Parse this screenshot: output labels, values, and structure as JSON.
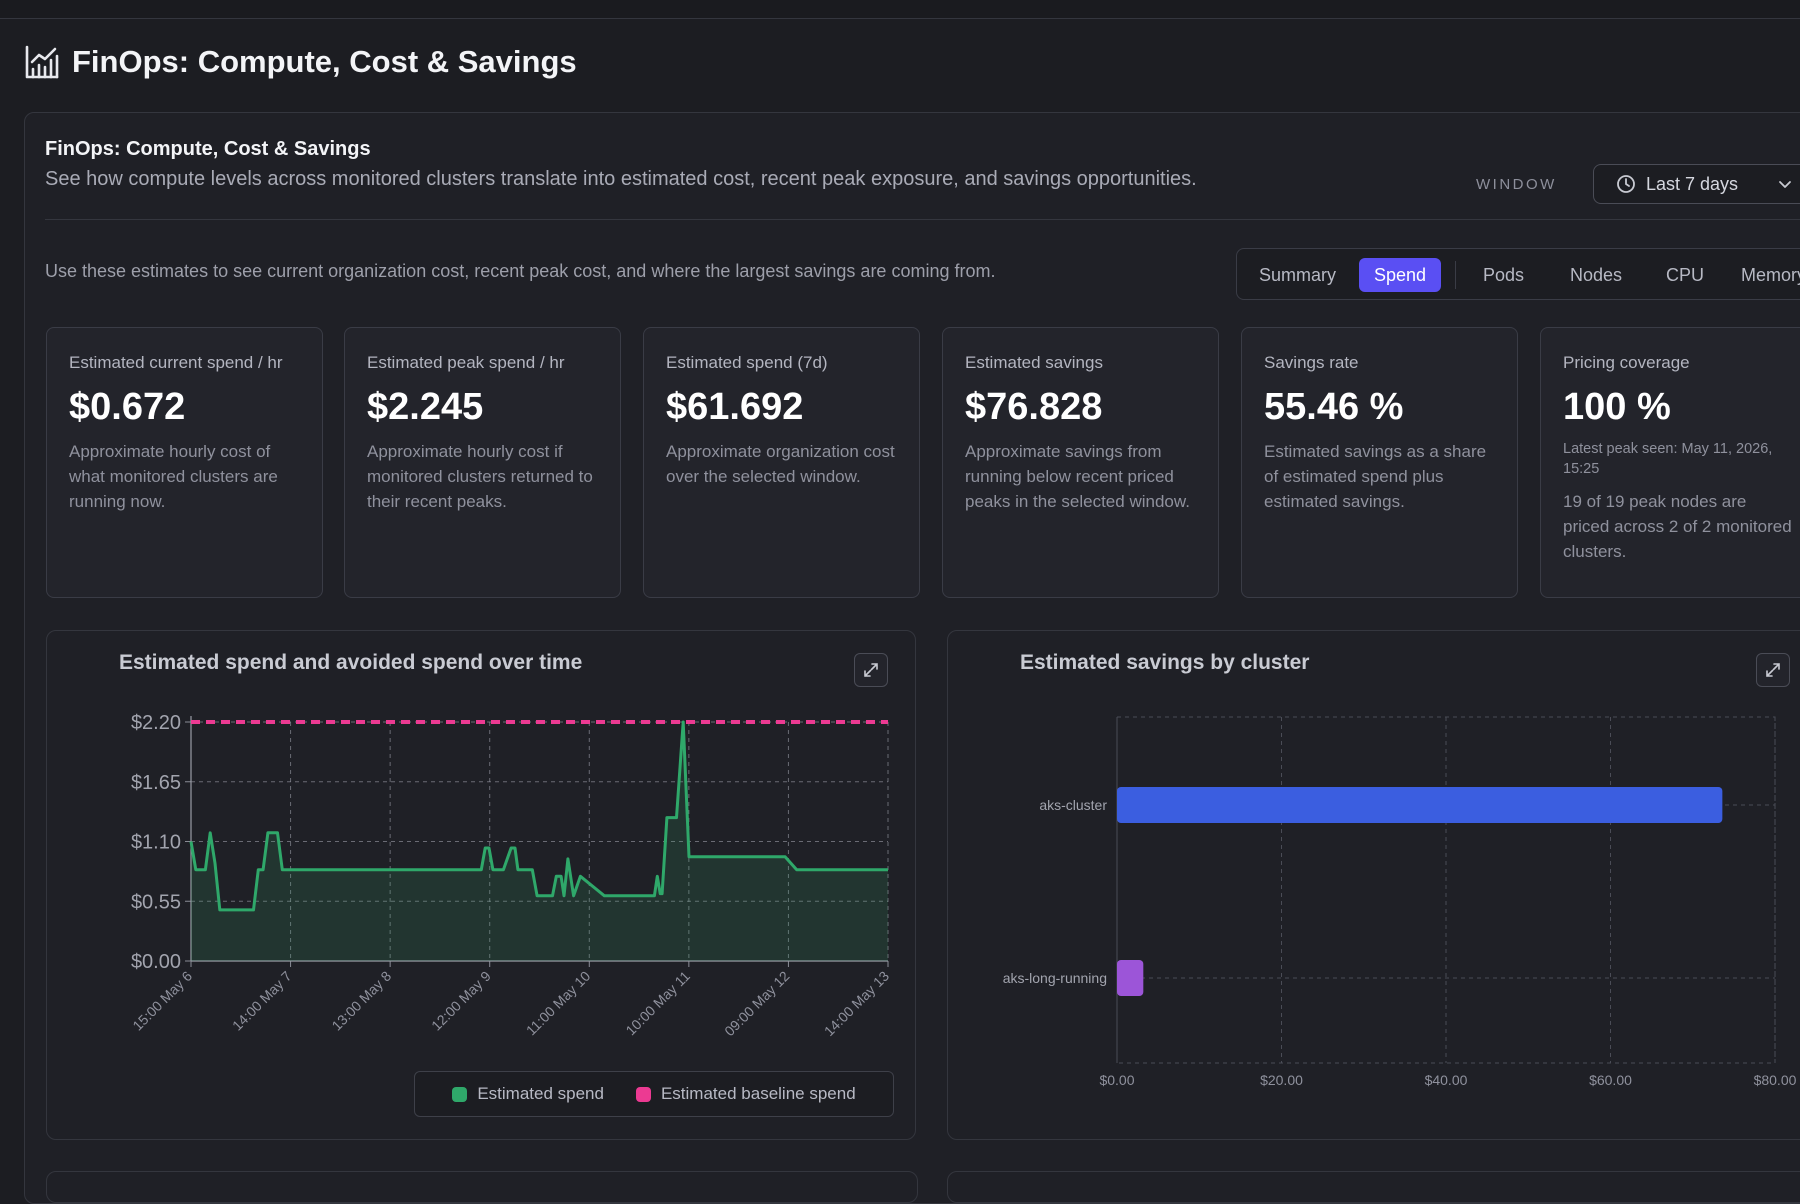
{
  "page": {
    "title": "FinOps: Compute, Cost & Savings",
    "title_icon": "bar-chart-rising-icon"
  },
  "panel": {
    "title": "FinOps: Compute, Cost & Savings",
    "subtitle": "See how compute levels across monitored clusters translate into estimated cost, recent peak exposure, and savings opportunities.",
    "window_label": "WINDOW",
    "window_value": "Last 7 days",
    "hint": "Use these estimates to see current organization cost, recent peak cost, and where the largest savings are coming from."
  },
  "tabs": [
    {
      "label": "Summary",
      "active": false
    },
    {
      "label": "Spend",
      "active": true
    },
    {
      "label": "Pods",
      "active": false
    },
    {
      "label": "Nodes",
      "active": false
    },
    {
      "label": "CPU",
      "active": false
    },
    {
      "label": "Memory",
      "active": false
    }
  ],
  "cards": [
    {
      "title": "Estimated current spend / hr",
      "value": "$0.672",
      "desc": "Approximate hourly cost of what monitored clusters are running now."
    },
    {
      "title": "Estimated peak spend / hr",
      "value": "$2.245",
      "desc": "Approximate hourly cost if monitored clusters returned to their recent peaks."
    },
    {
      "title": "Estimated spend (7d)",
      "value": "$61.692",
      "desc": "Approximate organization cost over the selected window."
    },
    {
      "title": "Estimated savings",
      "value": "$76.828",
      "desc": "Approximate savings from running below recent priced peaks in the selected window."
    },
    {
      "title": "Savings rate",
      "value": "55.46 %",
      "desc": "Estimated savings as a share of estimated spend plus estimated savings."
    },
    {
      "title": "Pricing coverage",
      "value": "100 %",
      "small": "Latest peak seen: May 11, 2026, 15:25",
      "desc": "19 of 19 peak nodes are priced across 2 of 2 monitored clusters."
    }
  ],
  "chart_data": [
    {
      "type": "area",
      "title": "Estimated spend and avoided spend over time",
      "xlabel": "",
      "ylabel": "",
      "ylim": [
        0,
        2.2
      ],
      "y_ticks": [
        "$0.00",
        "$0.55",
        "$1.10",
        "$1.65",
        "$2.20"
      ],
      "x_ticks": [
        "15:00 May 6",
        "14:00 May 7",
        "13:00 May 8",
        "12:00 May 9",
        "11:00 May 10",
        "10:00 May 11",
        "09:00 May 12",
        "14:00 May 13"
      ],
      "grid": true,
      "legend_position": "bottom",
      "series": [
        {
          "name": "Estimated spend",
          "color": "#2fa86a",
          "x": [
            0,
            0.05,
            0.15,
            0.2,
            0.25,
            0.3,
            0.35,
            0.4,
            0.45,
            0.5,
            0.55,
            0.6,
            0.65,
            0.7,
            0.75,
            0.8,
            0.85,
            0.9,
            0.95,
            1.0,
            1.05,
            1.1,
            1.2,
            1.3,
            1.5,
            1.8,
            2.0,
            2.5,
            3.0,
            3.02,
            3.06,
            3.1,
            3.14,
            3.2,
            3.25,
            3.33,
            3.37,
            3.4,
            3.45,
            3.55,
            3.6,
            3.65,
            3.72,
            3.76,
            3.8,
            3.85,
            3.88,
            3.92,
            3.98,
            4.05,
            4.3,
            4.6,
            4.82,
            4.85,
            4.88,
            4.9,
            4.95,
            5.0,
            5.05,
            5.12,
            5.18,
            5.26,
            5.3,
            5.5,
            5.8,
            6.1,
            6.18,
            6.3,
            6.6,
            6.9,
            7.0,
            7.25
          ],
          "values": [
            1.1,
            0.84,
            0.84,
            1.18,
            0.9,
            0.47,
            0.47,
            0.47,
            0.47,
            0.47,
            0.47,
            0.47,
            0.47,
            0.84,
            0.84,
            1.18,
            1.18,
            1.18,
            0.84,
            0.84,
            0.84,
            0.84,
            0.84,
            0.84,
            0.84,
            0.84,
            0.84,
            0.84,
            0.84,
            0.84,
            1.04,
            1.04,
            0.84,
            0.84,
            0.84,
            1.04,
            1.04,
            0.84,
            0.84,
            0.84,
            0.6,
            0.6,
            0.6,
            0.6,
            0.78,
            0.78,
            0.6,
            0.94,
            0.6,
            0.78,
            0.6,
            0.6,
            0.6,
            0.78,
            0.62,
            0.62,
            1.32,
            1.32,
            1.32,
            2.2,
            0.96,
            0.96,
            0.96,
            0.96,
            0.96,
            0.96,
            0.96,
            0.84,
            0.84,
            0.84,
            0.84,
            0.84
          ]
        },
        {
          "name": "Estimated baseline spend",
          "color": "#ec3a92",
          "x": [
            0,
            7.25
          ],
          "values": [
            2.2,
            2.2
          ]
        }
      ]
    },
    {
      "type": "bar",
      "orientation": "horizontal",
      "title": "Estimated savings by cluster",
      "categories": [
        "aks-cluster",
        "aks-long-running"
      ],
      "values": [
        73.6,
        3.2
      ],
      "colors": [
        "#3b5ee0",
        "#9c55d8"
      ],
      "xlim": [
        0,
        80
      ],
      "x_ticks": [
        "$0.00",
        "$20.00",
        "$40.00",
        "$60.00",
        "$80.00"
      ],
      "grid": true
    }
  ]
}
